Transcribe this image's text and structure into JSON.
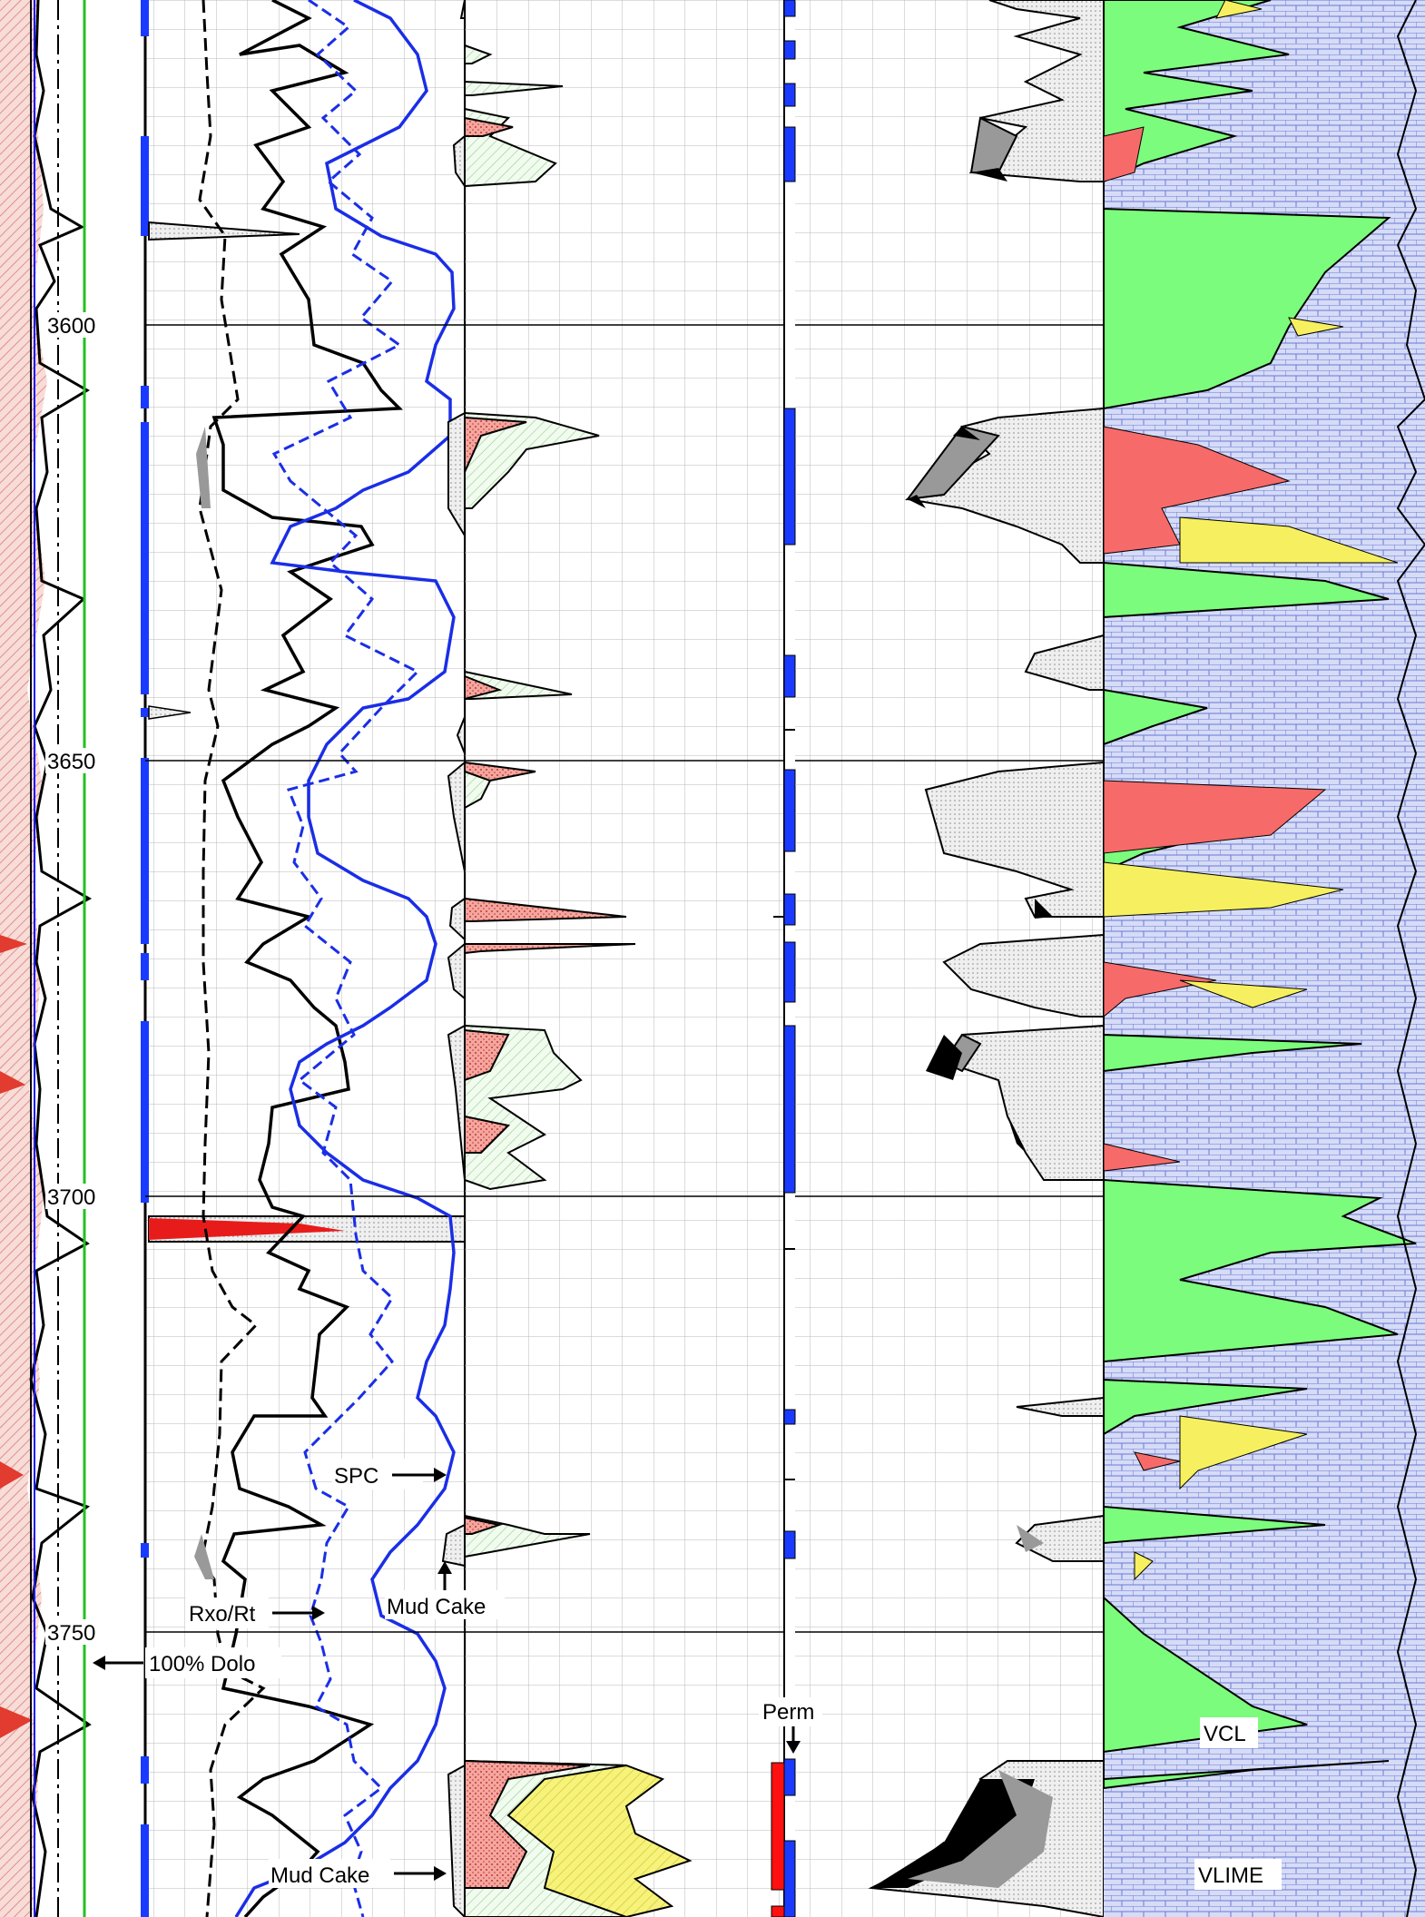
{
  "chart_data": {
    "type": "line",
    "title": "",
    "depth_axis": {
      "ticks": [
        3600,
        3650,
        3700,
        3750
      ],
      "range": [
        3565,
        3785
      ]
    },
    "annotations": {
      "spc": "SPC",
      "mud_cake_upper": "Mud Cake",
      "mud_cake_lower": "Mud Cake",
      "rxo_rt": "Rxo/Rt",
      "dolo": "100% Dolo",
      "perm": "Perm",
      "vcl": "VCL",
      "vlime": "VLIME"
    },
    "series": [
      {
        "name": "Rxo/Rt",
        "depth": [
          3565,
          3580,
          3590,
          3605,
          3612,
          3620,
          3630,
          3640,
          3648,
          3660,
          3670,
          3680,
          3690,
          3700,
          3710,
          3720,
          3730,
          3740,
          3750,
          3760,
          3770,
          3785
        ],
        "values": [
          0.62,
          0.45,
          0.72,
          0.58,
          0.82,
          0.5,
          0.64,
          0.55,
          0.7,
          0.44,
          0.58,
          0.48,
          0.42,
          0.52,
          0.61,
          0.46,
          0.55,
          0.43,
          0.47,
          0.66,
          0.38,
          0.5
        ]
      },
      {
        "name": "SPC",
        "depth": [
          3565,
          3580,
          3595,
          3610,
          3625,
          3640,
          3655,
          3670,
          3685,
          3700,
          3715,
          3730,
          3745,
          3760,
          3775,
          3785
        ],
        "values": [
          0.55,
          0.62,
          0.78,
          0.7,
          0.48,
          0.76,
          0.42,
          0.6,
          0.5,
          0.8,
          0.72,
          0.86,
          0.68,
          0.82,
          0.35,
          0.4
        ]
      }
    ],
    "depth_lines": [
      3600,
      3650,
      3700,
      3750
    ]
  }
}
